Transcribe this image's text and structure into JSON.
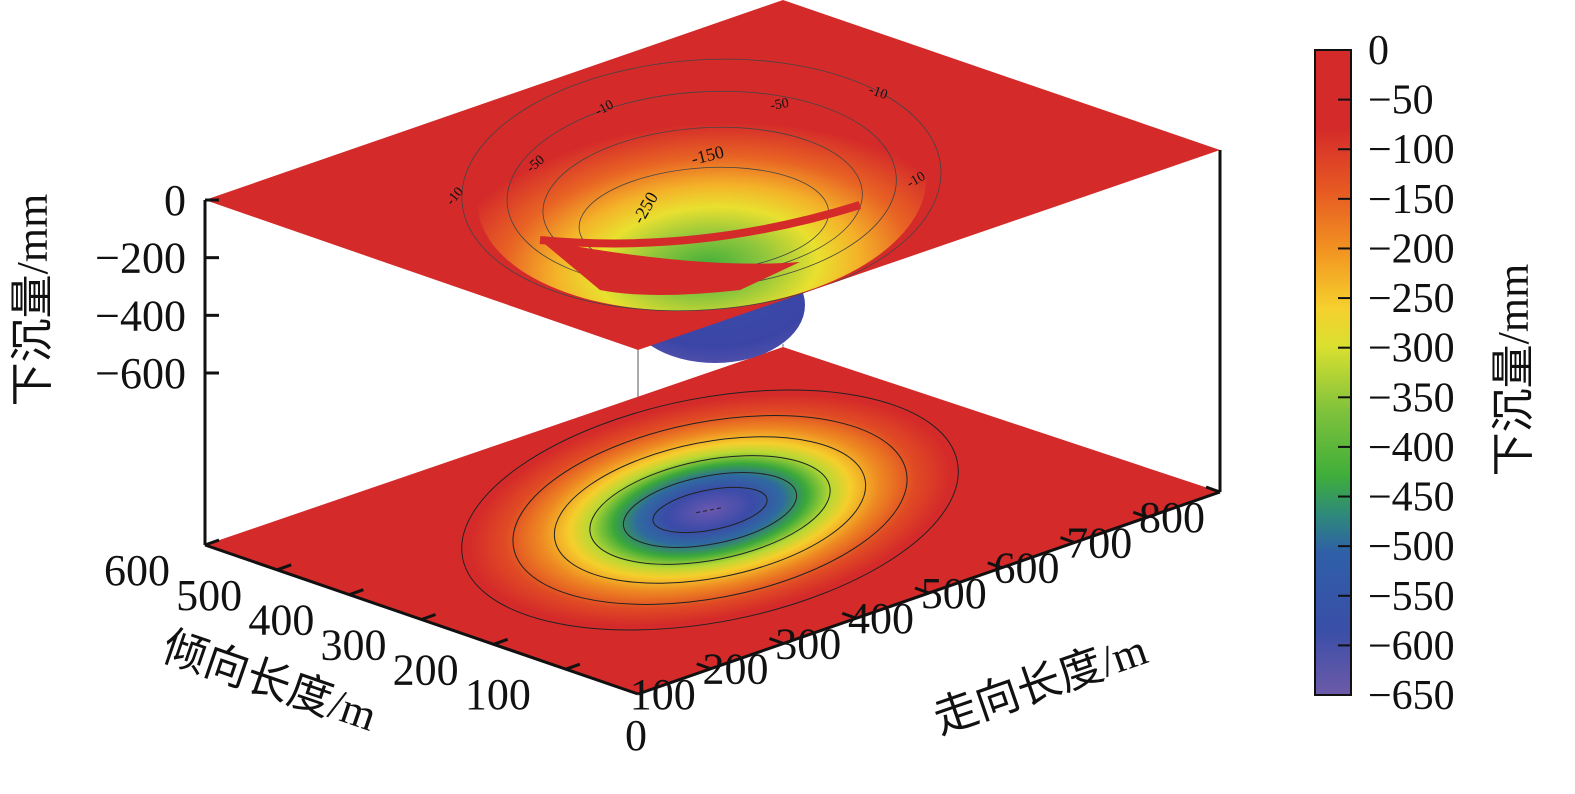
{
  "chart_data": {
    "type": "surface3d",
    "title": "",
    "x_axis": {
      "label": "走向长度/m",
      "range": [
        0,
        800
      ],
      "ticks": [
        0,
        100,
        200,
        300,
        400,
        500,
        600,
        700,
        800
      ]
    },
    "y_axis": {
      "label": "倾向长度/m",
      "range": [
        0,
        600
      ],
      "ticks": [
        100,
        200,
        300,
        400,
        500,
        600
      ]
    },
    "z_axis": {
      "label": "下沉量/mm",
      "range": [
        -600,
        0
      ],
      "ticks": [
        0,
        -200,
        -400,
        -600
      ]
    },
    "surface": {
      "min_subsidence_mm": -650,
      "center_strike_m": 400,
      "center_dip_m": 300,
      "surface_contours": [
        "-10",
        "-50",
        "-150",
        "-250",
        "-350"
      ]
    },
    "colorbar": {
      "label": "下沉量/mm",
      "range": [
        -650,
        0
      ],
      "ticks": [
        "0",
        "−50",
        "−100",
        "−150",
        "−200",
        "−250",
        "−300",
        "−350",
        "−400",
        "−450",
        "−500",
        "−550",
        "−600",
        "−650"
      ],
      "colors": [
        "#d42a2a",
        "#df4a23",
        "#ef8a20",
        "#f6c22c",
        "#e6e22e",
        "#8fc63c",
        "#48b33a",
        "#2f7aa6",
        "#3a52a8",
        "#6a5aa8"
      ]
    }
  }
}
